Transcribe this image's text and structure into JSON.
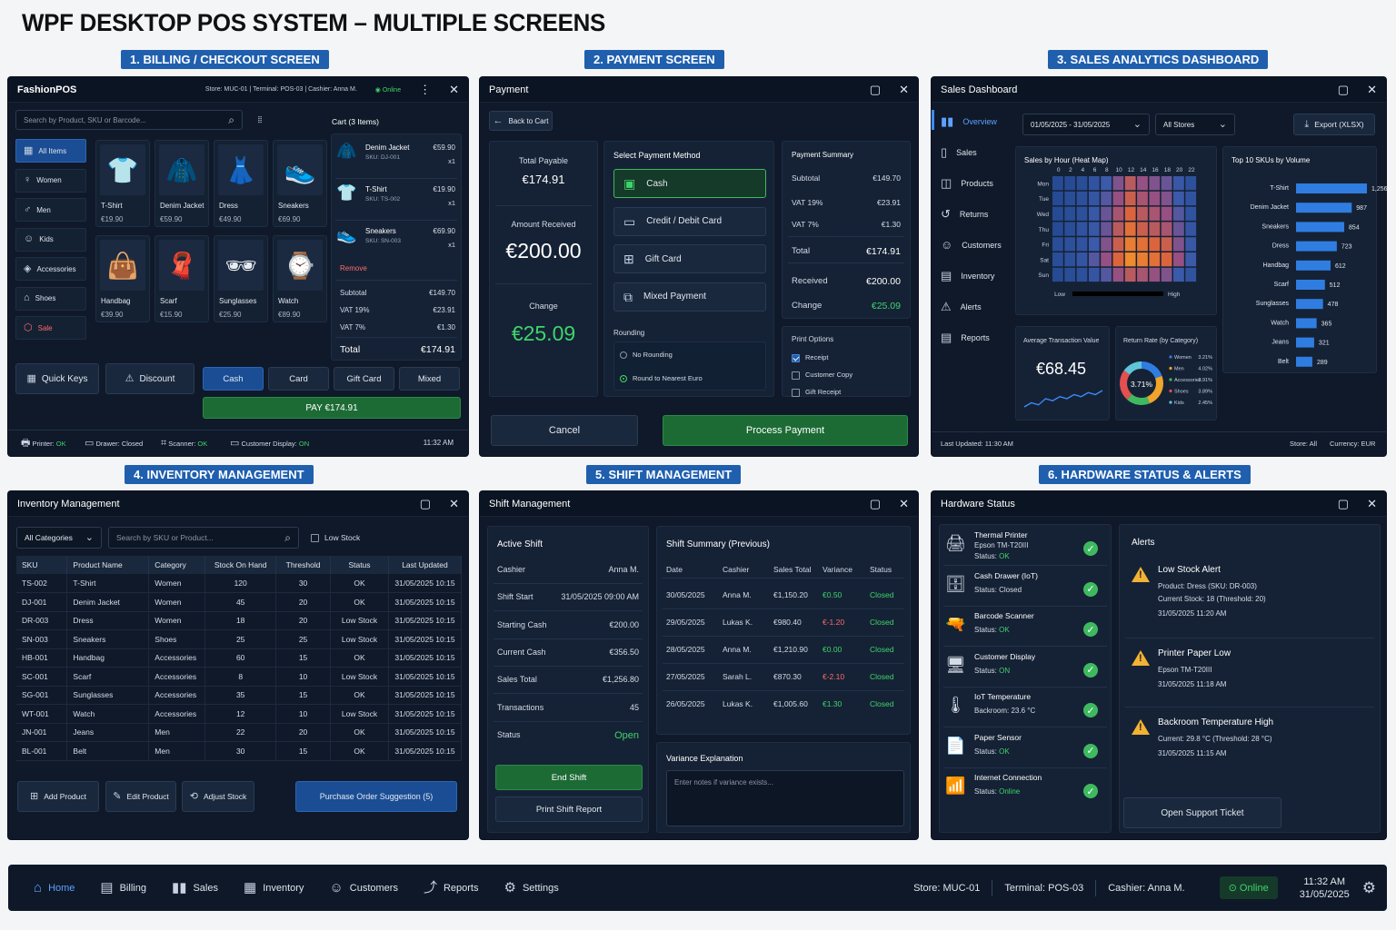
{
  "page_title": "WPF DESKTOP POS SYSTEM – MULTIPLE SCREENS",
  "section_titles": [
    "1. BILLING / CHECKOUT SCREEN",
    "2. PAYMENT SCREEN",
    "3. SALES ANALYTICS DASHBOARD",
    "4. INVENTORY MANAGEMENT",
    "5. SHIFT MANAGEMENT",
    "6. HARDWARE STATUS & ALERTS"
  ],
  "billing": {
    "app_title": "FashionPOS",
    "header_info": "Store: MUC-01  |  Terminal: POS-03  |  Cashier: Anna M.",
    "online": "Online",
    "search_placeholder": "Search by Product, SKU or Barcode...",
    "cart_title": "Cart (3 Items)",
    "categories": [
      "All Items",
      "Women",
      "Men",
      "Kids",
      "Accessories",
      "Shoes",
      "Sale"
    ],
    "products": [
      {
        "name": "T-Shirt",
        "price": "€19.90",
        "icon": "👕"
      },
      {
        "name": "Denim Jacket",
        "price": "€59.90",
        "icon": "🧥"
      },
      {
        "name": "Dress",
        "price": "€49.90",
        "icon": "👗"
      },
      {
        "name": "Sneakers",
        "price": "€69.90",
        "icon": "👟"
      },
      {
        "name": "Handbag",
        "price": "€39.90",
        "icon": "👜"
      },
      {
        "name": "Scarf",
        "price": "€15.90",
        "icon": "🧣"
      },
      {
        "name": "Sunglasses",
        "price": "€25.90",
        "icon": "🕶"
      },
      {
        "name": "Watch",
        "price": "€89.90",
        "icon": "⌚"
      }
    ],
    "cart_items": [
      {
        "name": "Denim Jacket",
        "sku": "SKU: DJ-001",
        "price": "€59.90",
        "qty": "x1",
        "icon": "🧥"
      },
      {
        "name": "T-Shirt",
        "sku": "SKU: TS-002",
        "price": "€19.90",
        "qty": "x1",
        "icon": "👕"
      },
      {
        "name": "Sneakers",
        "sku": "SKU: SN-003",
        "price": "€69.90",
        "qty": "x1",
        "icon": "👟"
      }
    ],
    "remove": "Remove",
    "totals": [
      {
        "label": "Subtotal",
        "value": "€149.70"
      },
      {
        "label": "VAT 19%",
        "value": "€23.91"
      },
      {
        "label": "VAT 7%",
        "value": "€1.30"
      }
    ],
    "total_label": "Total",
    "total_value": "€174.91",
    "quick_keys": "Quick Keys",
    "discount": "Discount",
    "pay_methods": [
      "Cash",
      "Card",
      "Gift Card",
      "Mixed"
    ],
    "pay_button": "PAY €174.91",
    "status": {
      "printer": "Printer: ",
      "printer_v": "OK",
      "drawer": "Drawer: Closed",
      "scanner": "Scanner: ",
      "scanner_v": "OK",
      "display": "Customer Display: ",
      "display_v": "ON",
      "time": "11:32 AM"
    }
  },
  "payment": {
    "title": "Payment",
    "back": "Back to Cart",
    "total_payable_label": "Total Payable",
    "total_payable": "€174.91",
    "amount_received_label": "Amount Received",
    "amount_received": "€200.00",
    "change_label": "Change",
    "change": "€25.09",
    "select_method": "Select Payment Method",
    "methods": [
      "Cash",
      "Credit / Debit Card",
      "Gift Card",
      "Mixed Payment"
    ],
    "rounding": "Rounding",
    "rounding_opts": [
      "No Rounding",
      "Round to Nearest Euro"
    ],
    "summary_title": "Payment Summary",
    "summary": [
      {
        "label": "Subtotal",
        "value": "€149.70"
      },
      {
        "label": "VAT 19%",
        "value": "€23.91"
      },
      {
        "label": "VAT 7%",
        "value": "€1.30"
      },
      {
        "label": "Total",
        "value": "€174.91"
      },
      {
        "label": "Received",
        "value": "€200.00"
      },
      {
        "label": "Change",
        "value": "€25.09"
      }
    ],
    "print_options": "Print Options",
    "print_opts": [
      {
        "label": "Receipt",
        "checked": true
      },
      {
        "label": "Customer Copy",
        "checked": false
      },
      {
        "label": "Gift Receipt",
        "checked": false
      }
    ],
    "cancel": "Cancel",
    "process": "Process Payment"
  },
  "dashboard": {
    "title": "Sales Dashboard",
    "nav": [
      "Overview",
      "Sales",
      "Products",
      "Returns",
      "Customers",
      "Inventory",
      "Alerts",
      "Reports"
    ],
    "date_range": "01/05/2025 - 31/05/2025",
    "stores": "All Stores",
    "export": "Export (XLSX)",
    "heatmap_title": "Sales by Hour (Heat Map)",
    "heat_hours": [
      "0",
      "2",
      "4",
      "6",
      "8",
      "10",
      "12",
      "14",
      "16",
      "18",
      "20",
      "22"
    ],
    "heat_days": [
      "Mon",
      "Tue",
      "Wed",
      "Thu",
      "Fri",
      "Sat",
      "Sun"
    ],
    "heat_low": "Low",
    "heat_high": "High",
    "top_title": "Top 10 SKUs by Volume",
    "avg_title": "Average Transaction Value",
    "avg_value": "€68.45",
    "return_title": "Return Rate (by Category)",
    "return_center": "3.71%",
    "last_updated": "Last Updated: 11:30 AM",
    "footer_store": "Store: All",
    "footer_currency": "Currency: EUR"
  },
  "chart_data": [
    {
      "type": "heatmap",
      "title": "Sales by Hour (Heat Map)",
      "x": [
        "0",
        "2",
        "4",
        "6",
        "8",
        "10",
        "12",
        "14",
        "16",
        "18",
        "20",
        "22"
      ],
      "y": [
        "Mon",
        "Tue",
        "Wed",
        "Thu",
        "Fri",
        "Sat",
        "Sun"
      ],
      "values": [
        [
          0.1,
          0.1,
          0.15,
          0.25,
          0.4,
          0.55,
          0.7,
          0.6,
          0.55,
          0.5,
          0.35,
          0.2
        ],
        [
          0.1,
          0.15,
          0.2,
          0.3,
          0.45,
          0.6,
          0.75,
          0.65,
          0.6,
          0.55,
          0.4,
          0.25
        ],
        [
          0.1,
          0.15,
          0.2,
          0.35,
          0.5,
          0.65,
          0.8,
          0.7,
          0.65,
          0.6,
          0.45,
          0.25
        ],
        [
          0.1,
          0.15,
          0.25,
          0.35,
          0.5,
          0.7,
          0.85,
          0.75,
          0.7,
          0.65,
          0.5,
          0.3
        ],
        [
          0.15,
          0.2,
          0.25,
          0.4,
          0.55,
          0.75,
          0.9,
          0.85,
          0.8,
          0.75,
          0.55,
          0.35
        ],
        [
          0.15,
          0.2,
          0.3,
          0.45,
          0.6,
          0.8,
          0.95,
          0.9,
          0.85,
          0.8,
          0.6,
          0.4
        ],
        [
          0.1,
          0.15,
          0.2,
          0.3,
          0.45,
          0.6,
          0.7,
          0.65,
          0.6,
          0.55,
          0.4,
          0.25
        ]
      ]
    },
    {
      "type": "bar",
      "title": "Top 10 SKUs by Volume",
      "categories": [
        "T-Shirt",
        "Denim Jacket",
        "Sneakers",
        "Dress",
        "Handbag",
        "Scarf",
        "Sunglasses",
        "Watch",
        "Jeans",
        "Belt"
      ],
      "values": [
        1256,
        987,
        854,
        723,
        612,
        512,
        478,
        365,
        321,
        289
      ],
      "labels": [
        "1,256",
        "987",
        "854",
        "723",
        "612",
        "512",
        "478",
        "365",
        "321",
        "289"
      ]
    },
    {
      "type": "line",
      "title": "Average Transaction Value",
      "values": [
        3,
        4,
        3.5,
        5,
        4.5,
        5.5,
        5,
        6,
        5.5,
        6.5,
        6,
        7
      ]
    },
    {
      "type": "pie",
      "title": "Return Rate (by Category)",
      "categories": [
        "Women",
        "Men",
        "Accessories",
        "Shoes",
        "Kids"
      ],
      "values": [
        3.21,
        4.02,
        2.91,
        3.89,
        2.45
      ],
      "labels": [
        "3.21%",
        "4.02%",
        "2.91%",
        "3.89%",
        "2.45%"
      ],
      "colors": [
        "#2f7de1",
        "#f0a42b",
        "#3fb960",
        "#e45050",
        "#5ec6d8"
      ]
    }
  ],
  "inventory": {
    "title": "Inventory Management",
    "category": "All Categories",
    "search_placeholder": "Search by SKU or Product...",
    "low_stock": "Low Stock",
    "columns": [
      "SKU",
      "Product Name",
      "Category",
      "Stock On Hand",
      "Threshold",
      "Status",
      "Last Updated"
    ],
    "rows": [
      [
        "TS-002",
        "T-Shirt",
        "Women",
        "120",
        "30",
        "OK",
        "31/05/2025 10:15"
      ],
      [
        "DJ-001",
        "Denim Jacket",
        "Women",
        "45",
        "20",
        "OK",
        "31/05/2025 10:15"
      ],
      [
        "DR-003",
        "Dress",
        "Women",
        "18",
        "20",
        "Low Stock",
        "31/05/2025 10:15"
      ],
      [
        "SN-003",
        "Sneakers",
        "Shoes",
        "25",
        "25",
        "Low Stock",
        "31/05/2025 10:15"
      ],
      [
        "HB-001",
        "Handbag",
        "Accessories",
        "60",
        "15",
        "OK",
        "31/05/2025 10:15"
      ],
      [
        "SC-001",
        "Scarf",
        "Accessories",
        "8",
        "10",
        "Low Stock",
        "31/05/2025 10:15"
      ],
      [
        "SG-001",
        "Sunglasses",
        "Accessories",
        "35",
        "15",
        "OK",
        "31/05/2025 10:15"
      ],
      [
        "WT-001",
        "Watch",
        "Accessories",
        "12",
        "10",
        "Low Stock",
        "31/05/2025 10:15"
      ],
      [
        "JN-001",
        "Jeans",
        "Men",
        "22",
        "20",
        "OK",
        "31/05/2025 10:15"
      ],
      [
        "BL-001",
        "Belt",
        "Men",
        "30",
        "15",
        "OK",
        "31/05/2025 10:15"
      ]
    ],
    "add": "Add Product",
    "edit": "Edit Product",
    "adjust": "Adjust Stock",
    "po": "Purchase Order Suggestion (5)"
  },
  "shift": {
    "title": "Shift Management",
    "active_title": "Active Shift",
    "active": [
      {
        "label": "Cashier",
        "value": "Anna M."
      },
      {
        "label": "Shift Start",
        "value": "31/05/2025 09:00 AM"
      },
      {
        "label": "Starting Cash",
        "value": "€200.00"
      },
      {
        "label": "Current Cash",
        "value": "€356.50"
      },
      {
        "label": "Sales Total",
        "value": "€1,256.80"
      },
      {
        "label": "Transactions",
        "value": "45"
      },
      {
        "label": "Status",
        "value": "Open"
      }
    ],
    "summary_title": "Shift Summary (Previous)",
    "columns": [
      "Date",
      "Cashier",
      "Sales Total",
      "Variance",
      "Status"
    ],
    "rows": [
      [
        "30/05/2025",
        "Anna M.",
        "€1,150.20",
        "€0.50",
        "Closed"
      ],
      [
        "29/05/2025",
        "Lukas K.",
        "€980.40",
        "€-1.20",
        "Closed"
      ],
      [
        "28/05/2025",
        "Anna M.",
        "€1,210.90",
        "€0.00",
        "Closed"
      ],
      [
        "27/05/2025",
        "Sarah L.",
        "€870.30",
        "€-2.10",
        "Closed"
      ],
      [
        "26/05/2025",
        "Lukas K.",
        "€1,005.60",
        "€1.30",
        "Closed"
      ]
    ],
    "variance_title": "Variance Explanation",
    "variance_placeholder": "Enter notes if variance exists...",
    "end_shift": "End Shift",
    "print_report": "Print Shift Report"
  },
  "hardware": {
    "title": "Hardware Status",
    "devices": [
      {
        "name": "Thermal Printer",
        "sub": "Epson TM-T20III",
        "status": "Status: ",
        "status_v": "OK",
        "icon": "🖨"
      },
      {
        "name": "Cash Drawer (IoT)",
        "sub": "",
        "status": "Status: ",
        "status_v": "Closed",
        "icon": "🗄"
      },
      {
        "name": "Barcode Scanner",
        "sub": "",
        "status": "Status: ",
        "status_v": "OK",
        "icon": "🔫"
      },
      {
        "name": "Customer Display",
        "sub": "",
        "status": "Status: ",
        "status_v": "ON",
        "icon": "🖥"
      },
      {
        "name": "IoT Temperature",
        "sub": "",
        "status": "Backroom: ",
        "status_v": "23.6 °C",
        "icon": "🌡"
      },
      {
        "name": "Paper Sensor",
        "sub": "",
        "status": "Status: ",
        "status_v": "OK",
        "icon": "📄"
      },
      {
        "name": "Internet Connection",
        "sub": "",
        "status": "Status: ",
        "status_v": "Online",
        "icon": "📶"
      }
    ],
    "alerts_title": "Alerts",
    "alerts": [
      {
        "title": "Low Stock Alert",
        "l1": "Product: Dress (SKU: DR-003)",
        "l2": "Current Stock: 18 (Threshold: 20)",
        "time": "31/05/2025 11:20 AM"
      },
      {
        "title": "Printer Paper Low",
        "l1": "Epson TM-T20III",
        "l2": "",
        "time": "31/05/2025 11:18 AM"
      },
      {
        "title": "Backroom Temperature High",
        "l1": "Current: 29.8 °C (Threshold: 28 °C)",
        "l2": "",
        "time": "31/05/2025 11:15 AM"
      }
    ],
    "support": "Open Support Ticket"
  },
  "navbar": {
    "items": [
      "Home",
      "Billing",
      "Sales",
      "Inventory",
      "Customers",
      "Reports",
      "Settings"
    ],
    "store": "Store: MUC-01",
    "terminal": "Terminal: POS-03",
    "cashier": "Cashier: Anna M.",
    "online": "Online",
    "time": "11:32 AM",
    "date": "31/05/2025"
  }
}
